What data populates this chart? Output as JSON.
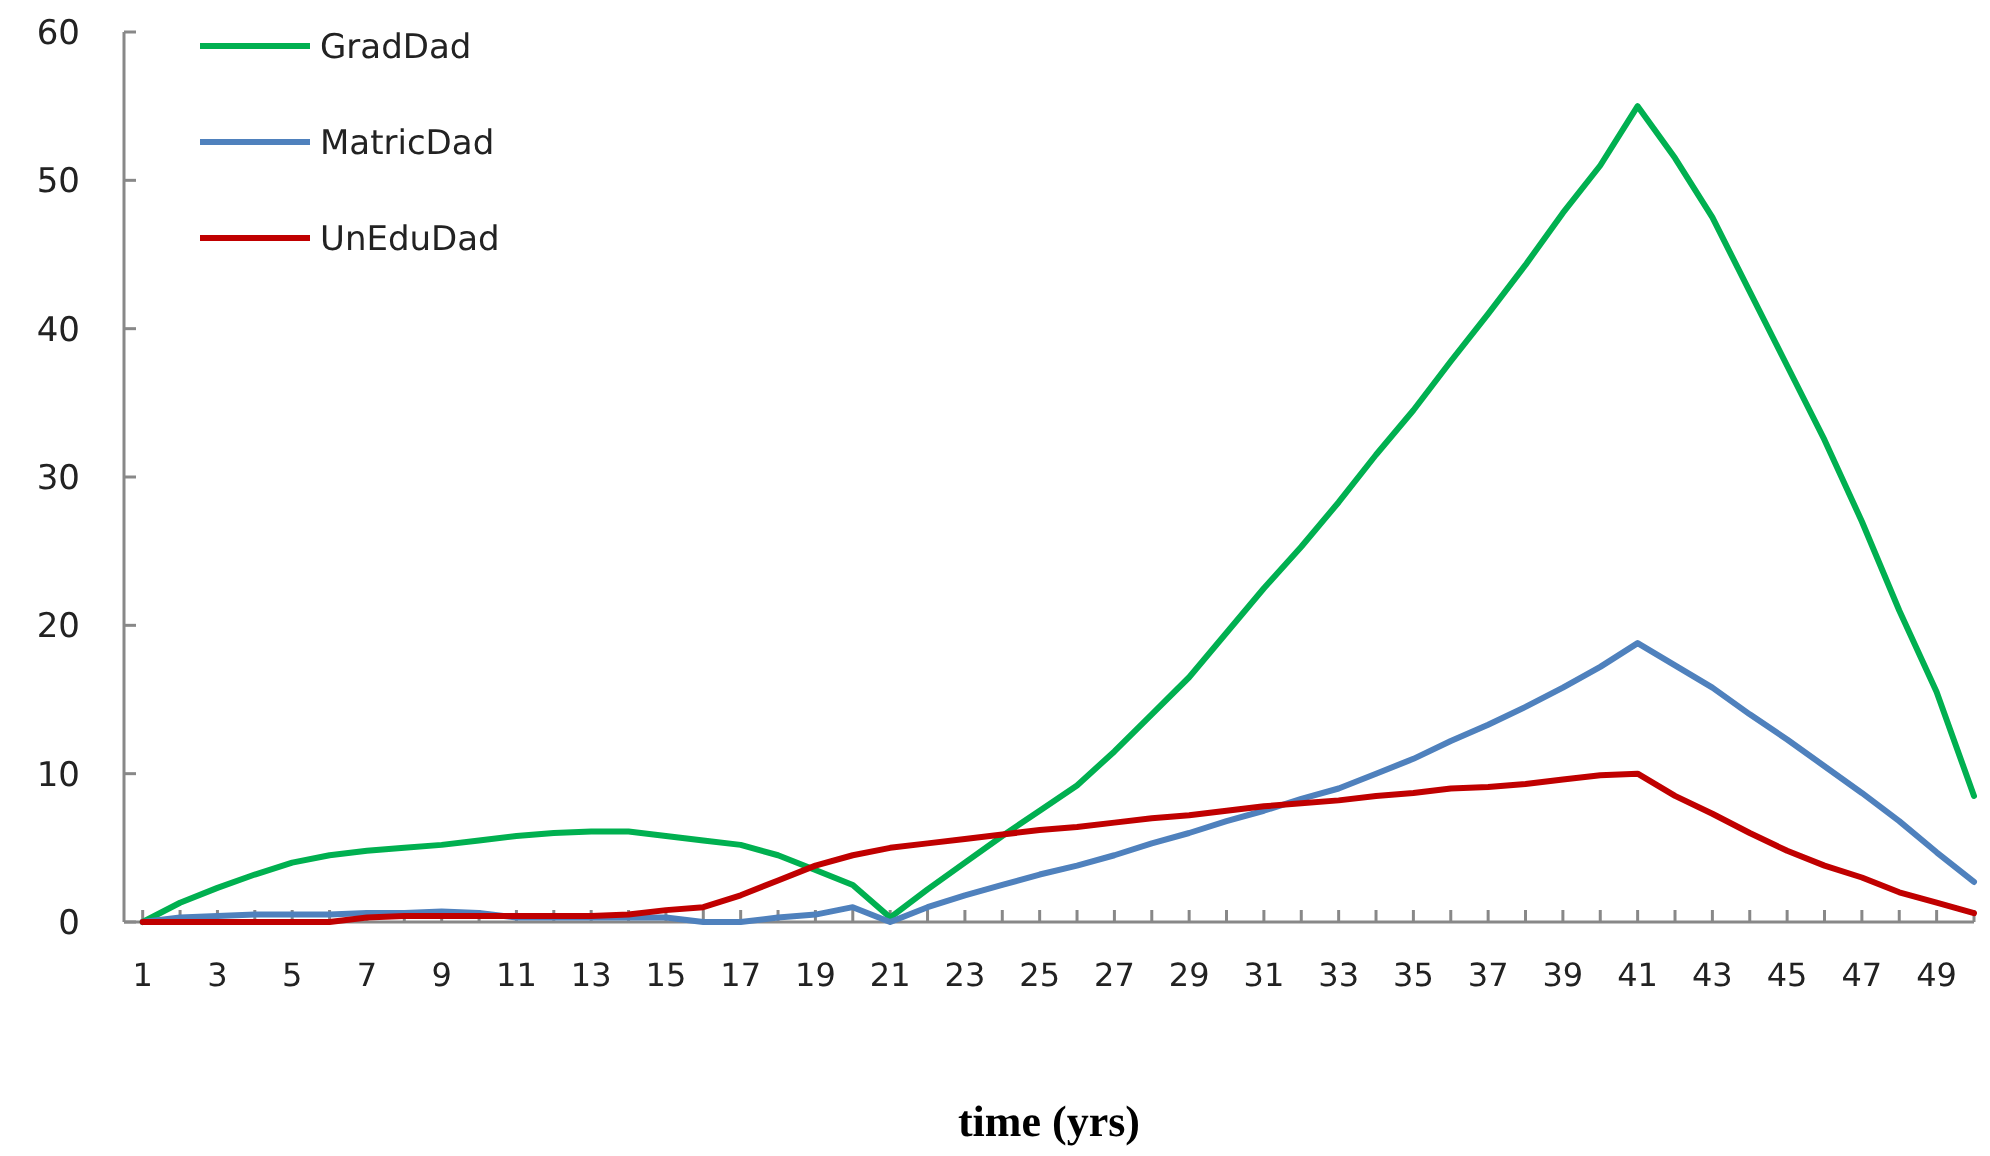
{
  "chart_data": {
    "type": "line",
    "xlabel": "time (yrs)",
    "x": [
      1,
      2,
      3,
      4,
      5,
      6,
      7,
      8,
      9,
      10,
      11,
      12,
      13,
      14,
      15,
      16,
      17,
      18,
      19,
      20,
      21,
      22,
      23,
      24,
      25,
      26,
      27,
      28,
      29,
      30,
      31,
      32,
      33,
      34,
      35,
      36,
      37,
      38,
      39,
      40,
      41,
      42,
      43,
      44,
      45,
      46,
      47,
      48,
      49,
      50
    ],
    "xlim": [
      0.5,
      50
    ],
    "xticks": [
      1,
      {
        "value": 2,
        "label": null
      },
      3,
      {
        "value": 4,
        "label": null
      },
      5,
      {
        "value": 6,
        "label": null
      },
      7,
      {
        "value": 8,
        "label": null
      },
      9,
      {
        "value": 10,
        "label": null
      },
      11,
      {
        "value": 12,
        "label": null
      },
      13,
      {
        "value": 14,
        "label": null
      },
      15,
      {
        "value": 16,
        "label": null
      },
      17,
      {
        "value": 18,
        "label": null
      },
      19,
      {
        "value": 20,
        "label": null
      },
      21,
      {
        "value": 22,
        "label": null
      },
      23,
      {
        "value": 24,
        "label": null
      },
      25,
      {
        "value": 26,
        "label": null
      },
      27,
      {
        "value": 28,
        "label": null
      },
      29,
      {
        "value": 30,
        "label": null
      },
      31,
      {
        "value": 32,
        "label": null
      },
      33,
      {
        "value": 34,
        "label": null
      },
      35,
      {
        "value": 36,
        "label": null
      },
      37,
      {
        "value": 38,
        "label": null
      },
      39,
      {
        "value": 40,
        "label": null
      },
      41,
      {
        "value": 42,
        "label": null
      },
      43,
      {
        "value": 44,
        "label": null
      },
      45,
      {
        "value": 46,
        "label": null
      },
      47,
      {
        "value": 48,
        "label": null
      },
      49,
      {
        "value": 50,
        "label": null
      }
    ],
    "series": [
      {
        "name": "GradDad",
        "color": "#00b050",
        "values": [
          0,
          1.3,
          2.3,
          3.2,
          4.0,
          4.5,
          4.8,
          5.0,
          5.2,
          5.5,
          5.8,
          6.0,
          6.1,
          6.1,
          5.8,
          5.5,
          5.2,
          4.5,
          3.5,
          2.5,
          0.3,
          2.2,
          4.0,
          5.8,
          7.5,
          9.2,
          11.5,
          14,
          16.5,
          19.5,
          22.5,
          25.3,
          28.3,
          31.5,
          34.5,
          37.8,
          41,
          44.3,
          47.8,
          51,
          55,
          51.5,
          47.5,
          42.5,
          37.5,
          32.5,
          27,
          21,
          15.5,
          8.5
        ]
      },
      {
        "name": "MatricDad",
        "color": "#4f81bd",
        "values": [
          0,
          0.3,
          0.4,
          0.5,
          0.5,
          0.5,
          0.6,
          0.6,
          0.7,
          0.6,
          0.3,
          0.3,
          0.3,
          0.3,
          0.3,
          0,
          0,
          0.3,
          0.5,
          1,
          0,
          1,
          1.8,
          2.5,
          3.2,
          3.8,
          4.5,
          5.3,
          6,
          6.8,
          7.5,
          8.3,
          9,
          10,
          11,
          12.2,
          13.3,
          14.5,
          15.8,
          17.2,
          18.8,
          17.3,
          15.8,
          14,
          12.3,
          10.5,
          8.7,
          6.8,
          4.7,
          2.7
        ]
      },
      {
        "name": "UnEduDad",
        "color": "#c00000",
        "values": [
          0,
          0,
          0,
          0,
          0,
          0,
          0.3,
          0.4,
          0.4,
          0.4,
          0.4,
          0.4,
          0.4,
          0.5,
          0.8,
          1,
          1.8,
          2.8,
          3.8,
          4.5,
          5,
          5.3,
          5.6,
          5.9,
          6.2,
          6.4,
          6.7,
          7,
          7.2,
          7.5,
          7.8,
          8,
          8.2,
          8.5,
          8.7,
          9,
          9.1,
          9.3,
          9.6,
          9.9,
          10,
          8.5,
          7.3,
          6,
          4.8,
          3.8,
          3,
          2,
          1.3,
          0.6
        ]
      }
    ],
    "ylim": [
      0,
      60
    ],
    "yticks": [
      0,
      10,
      20,
      30,
      40,
      50,
      60
    ],
    "legend": "top left",
    "grid": false
  }
}
